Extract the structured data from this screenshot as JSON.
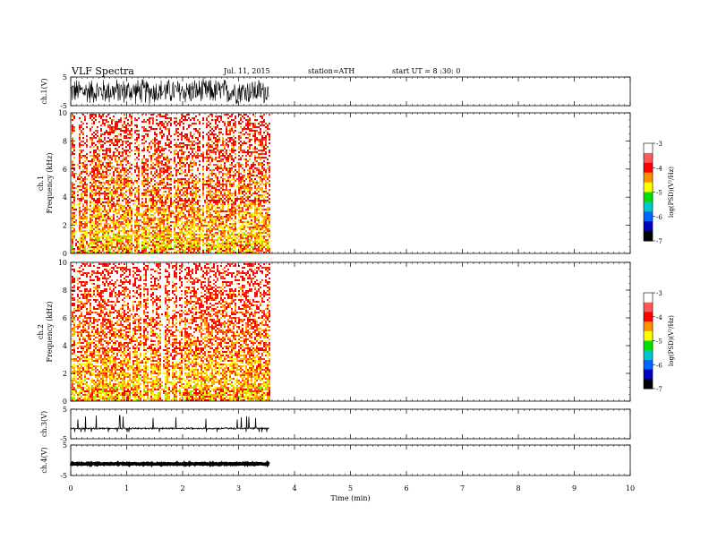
{
  "header": {
    "title": "VLF  Spectra",
    "date": "Jul.  11,  2015",
    "station": "station=ATH",
    "start": "start  UT  =    8  :30: 0"
  },
  "chart_data": {
    "type": "multi-panel spectrogram",
    "x_axis": {
      "label": "Time  (min)",
      "range": [
        0,
        10
      ],
      "ticks": [
        "0",
        "1",
        "2",
        "3",
        "4",
        "5",
        "6",
        "7",
        "8",
        "9",
        "10"
      ],
      "data_extent": 3.55
    },
    "panels": [
      {
        "kind": "waveform",
        "ylabel": "ch.1(V)",
        "yrange": [
          -5,
          5
        ],
        "yticks": [
          "5",
          "-5"
        ],
        "style": "dense-oscillation",
        "amplitude": 5
      },
      {
        "kind": "spectrogram",
        "ylabel_top": "ch.1",
        "ylabel": "Frequency  (kHz)",
        "yrange": [
          0,
          10
        ],
        "yticks": [
          "0",
          "2",
          "4",
          "6",
          "8",
          "10"
        ],
        "colorbar": {
          "label": "log(PSD)(V²/Hz)",
          "range": [
            -7,
            -3
          ],
          "ticks": [
            "-3",
            "-4",
            "-5",
            "-6",
            "-7"
          ]
        }
      },
      {
        "kind": "spectrogram",
        "ylabel_top": "ch.2",
        "ylabel": "Frequency  (kHz)",
        "yrange": [
          0,
          10
        ],
        "yticks": [
          "0",
          "2",
          "4",
          "6",
          "8",
          "10"
        ],
        "colorbar": {
          "label": "log(PSD)(V²/Hz)",
          "range": [
            -7,
            -3
          ],
          "ticks": [
            "-3",
            "-4",
            "-5",
            "-6",
            "-7"
          ]
        }
      },
      {
        "kind": "waveform",
        "ylabel": "ch.3(V)",
        "yrange": [
          -5,
          5
        ],
        "yticks": [
          "5",
          "-5"
        ],
        "style": "spiky-baseline",
        "baseline": -1.5
      },
      {
        "kind": "waveform",
        "ylabel": "ch.4(V)",
        "yrange": [
          -5,
          5
        ],
        "yticks": [
          "5",
          "-5"
        ],
        "style": "flat-thick",
        "baseline": -1.2
      }
    ]
  }
}
